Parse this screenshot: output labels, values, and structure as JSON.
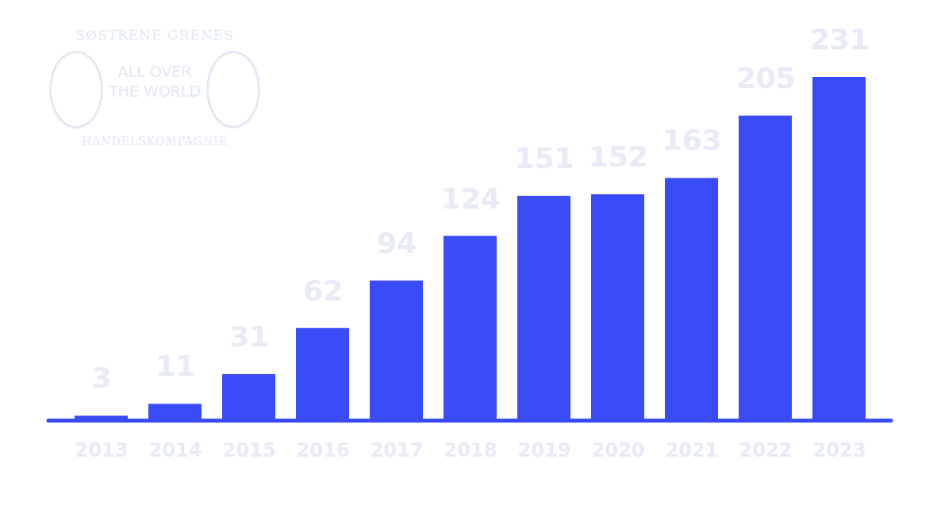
{
  "chart_data": {
    "type": "bar",
    "annotations": [
      "SØSTRENE GRENES",
      "ALL OVER THE WORLD",
      "HANDELSKOMPAGNIE"
    ],
    "categories": [
      "2013",
      "2014",
      "2015",
      "2016",
      "2017",
      "2018",
      "2019",
      "2020",
      "2021",
      "2022",
      "2023"
    ],
    "values": [
      3,
      11,
      31,
      62,
      94,
      124,
      151,
      152,
      163,
      205,
      231
    ],
    "color": "#394cf7",
    "ylim": [
      0,
      231
    ],
    "yticks": [
      0
    ],
    "grid": false,
    "data_labels": true,
    "tick_labels": "x"
  }
}
